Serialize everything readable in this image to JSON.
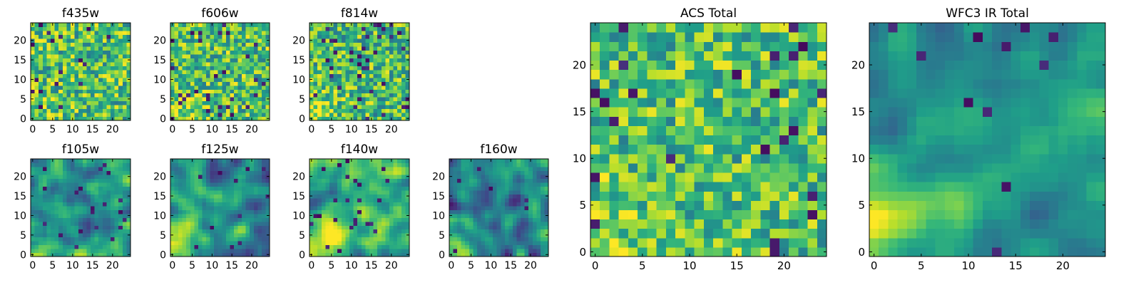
{
  "chart_data": [
    {
      "type": "heatmap",
      "title": "f435w",
      "grid_size": 25,
      "xticks": [
        0,
        5,
        10,
        15,
        20
      ],
      "yticks": [
        0,
        5,
        10,
        15,
        20
      ],
      "xlim": [
        -0.5,
        24.5
      ],
      "ylim": [
        -0.5,
        24.5
      ],
      "colormap": "viridis",
      "image": "noisy pixel map, mostly green-yellow with scattered dark purple pixels"
    },
    {
      "type": "heatmap",
      "title": "f606w",
      "grid_size": 25,
      "xticks": [
        0,
        5,
        10,
        15,
        20
      ],
      "yticks": [
        0,
        5,
        10,
        15,
        20
      ],
      "xlim": [
        -0.5,
        24.5
      ],
      "ylim": [
        -0.5,
        24.5
      ],
      "colormap": "viridis",
      "image": "noisy pixel map, mostly green-yellow with scattered dark purple pixels"
    },
    {
      "type": "heatmap",
      "title": "f814w",
      "grid_size": 25,
      "xticks": [
        0,
        5,
        10,
        15,
        20
      ],
      "yticks": [
        0,
        5,
        10,
        15,
        20
      ],
      "xlim": [
        -0.5,
        24.5
      ],
      "ylim": [
        -0.5,
        24.5
      ],
      "colormap": "viridis",
      "image": "noisy pixel map, green-yellow with more dark purple pixels"
    },
    {
      "type": "heatmap",
      "title": "f105w",
      "grid_size": 25,
      "xticks": [
        0,
        5,
        10,
        15,
        20
      ],
      "yticks": [
        0,
        5,
        10,
        15,
        20
      ],
      "xlim": [
        -0.5,
        24.5
      ],
      "ylim": [
        -0.5,
        24.5
      ],
      "colormap": "viridis",
      "image": "smoother map, teal-green with yellow patches lower-left, dark patches top"
    },
    {
      "type": "heatmap",
      "title": "f125w",
      "grid_size": 25,
      "xticks": [
        0,
        5,
        10,
        15,
        20
      ],
      "yticks": [
        0,
        5,
        10,
        15,
        20
      ],
      "xlim": [
        -0.5,
        24.5
      ],
      "ylim": [
        -0.5,
        24.5
      ],
      "colormap": "viridis",
      "image": "smoother map, teal-green, yellow at bottom"
    },
    {
      "type": "heatmap",
      "title": "f140w",
      "grid_size": 25,
      "xticks": [
        0,
        5,
        10,
        15,
        20
      ],
      "yticks": [
        0,
        5,
        10,
        15,
        20
      ],
      "xlim": [
        -0.5,
        24.5
      ],
      "ylim": [
        -0.5,
        24.5
      ],
      "colormap": "viridis",
      "image": "green-yellow with bright yellow lower-left"
    },
    {
      "type": "heatmap",
      "title": "f160w",
      "grid_size": 25,
      "xticks": [
        0,
        5,
        10,
        15,
        20
      ],
      "yticks": [
        0,
        5,
        10,
        15,
        20
      ],
      "xlim": [
        -0.5,
        24.5
      ],
      "ylim": [
        -0.5,
        24.5
      ],
      "colormap": "viridis",
      "image": "mostly blue-teal with yellow lower-left"
    },
    {
      "type": "heatmap",
      "title": "ACS Total",
      "grid_size": 25,
      "xticks": [
        0,
        5,
        10,
        15,
        20
      ],
      "yticks": [
        0,
        5,
        10,
        15,
        20
      ],
      "xlim": [
        -0.5,
        24.5
      ],
      "ylim": [
        -0.5,
        24.5
      ],
      "colormap": "viridis",
      "image": "blocky green-yellow pixels with scattered dark purple pixels"
    },
    {
      "type": "heatmap",
      "title": "WFC3 IR Total",
      "grid_size": 25,
      "xticks": [
        0,
        5,
        10,
        15,
        20
      ],
      "yticks": [
        0,
        5,
        10,
        15,
        20
      ],
      "xlim": [
        -0.5,
        24.5
      ],
      "ylim": [
        -0.5,
        24.5
      ],
      "colormap": "viridis",
      "image": "teal-blue with green, bright yellow lower-left corner, dark patches upper area"
    }
  ]
}
